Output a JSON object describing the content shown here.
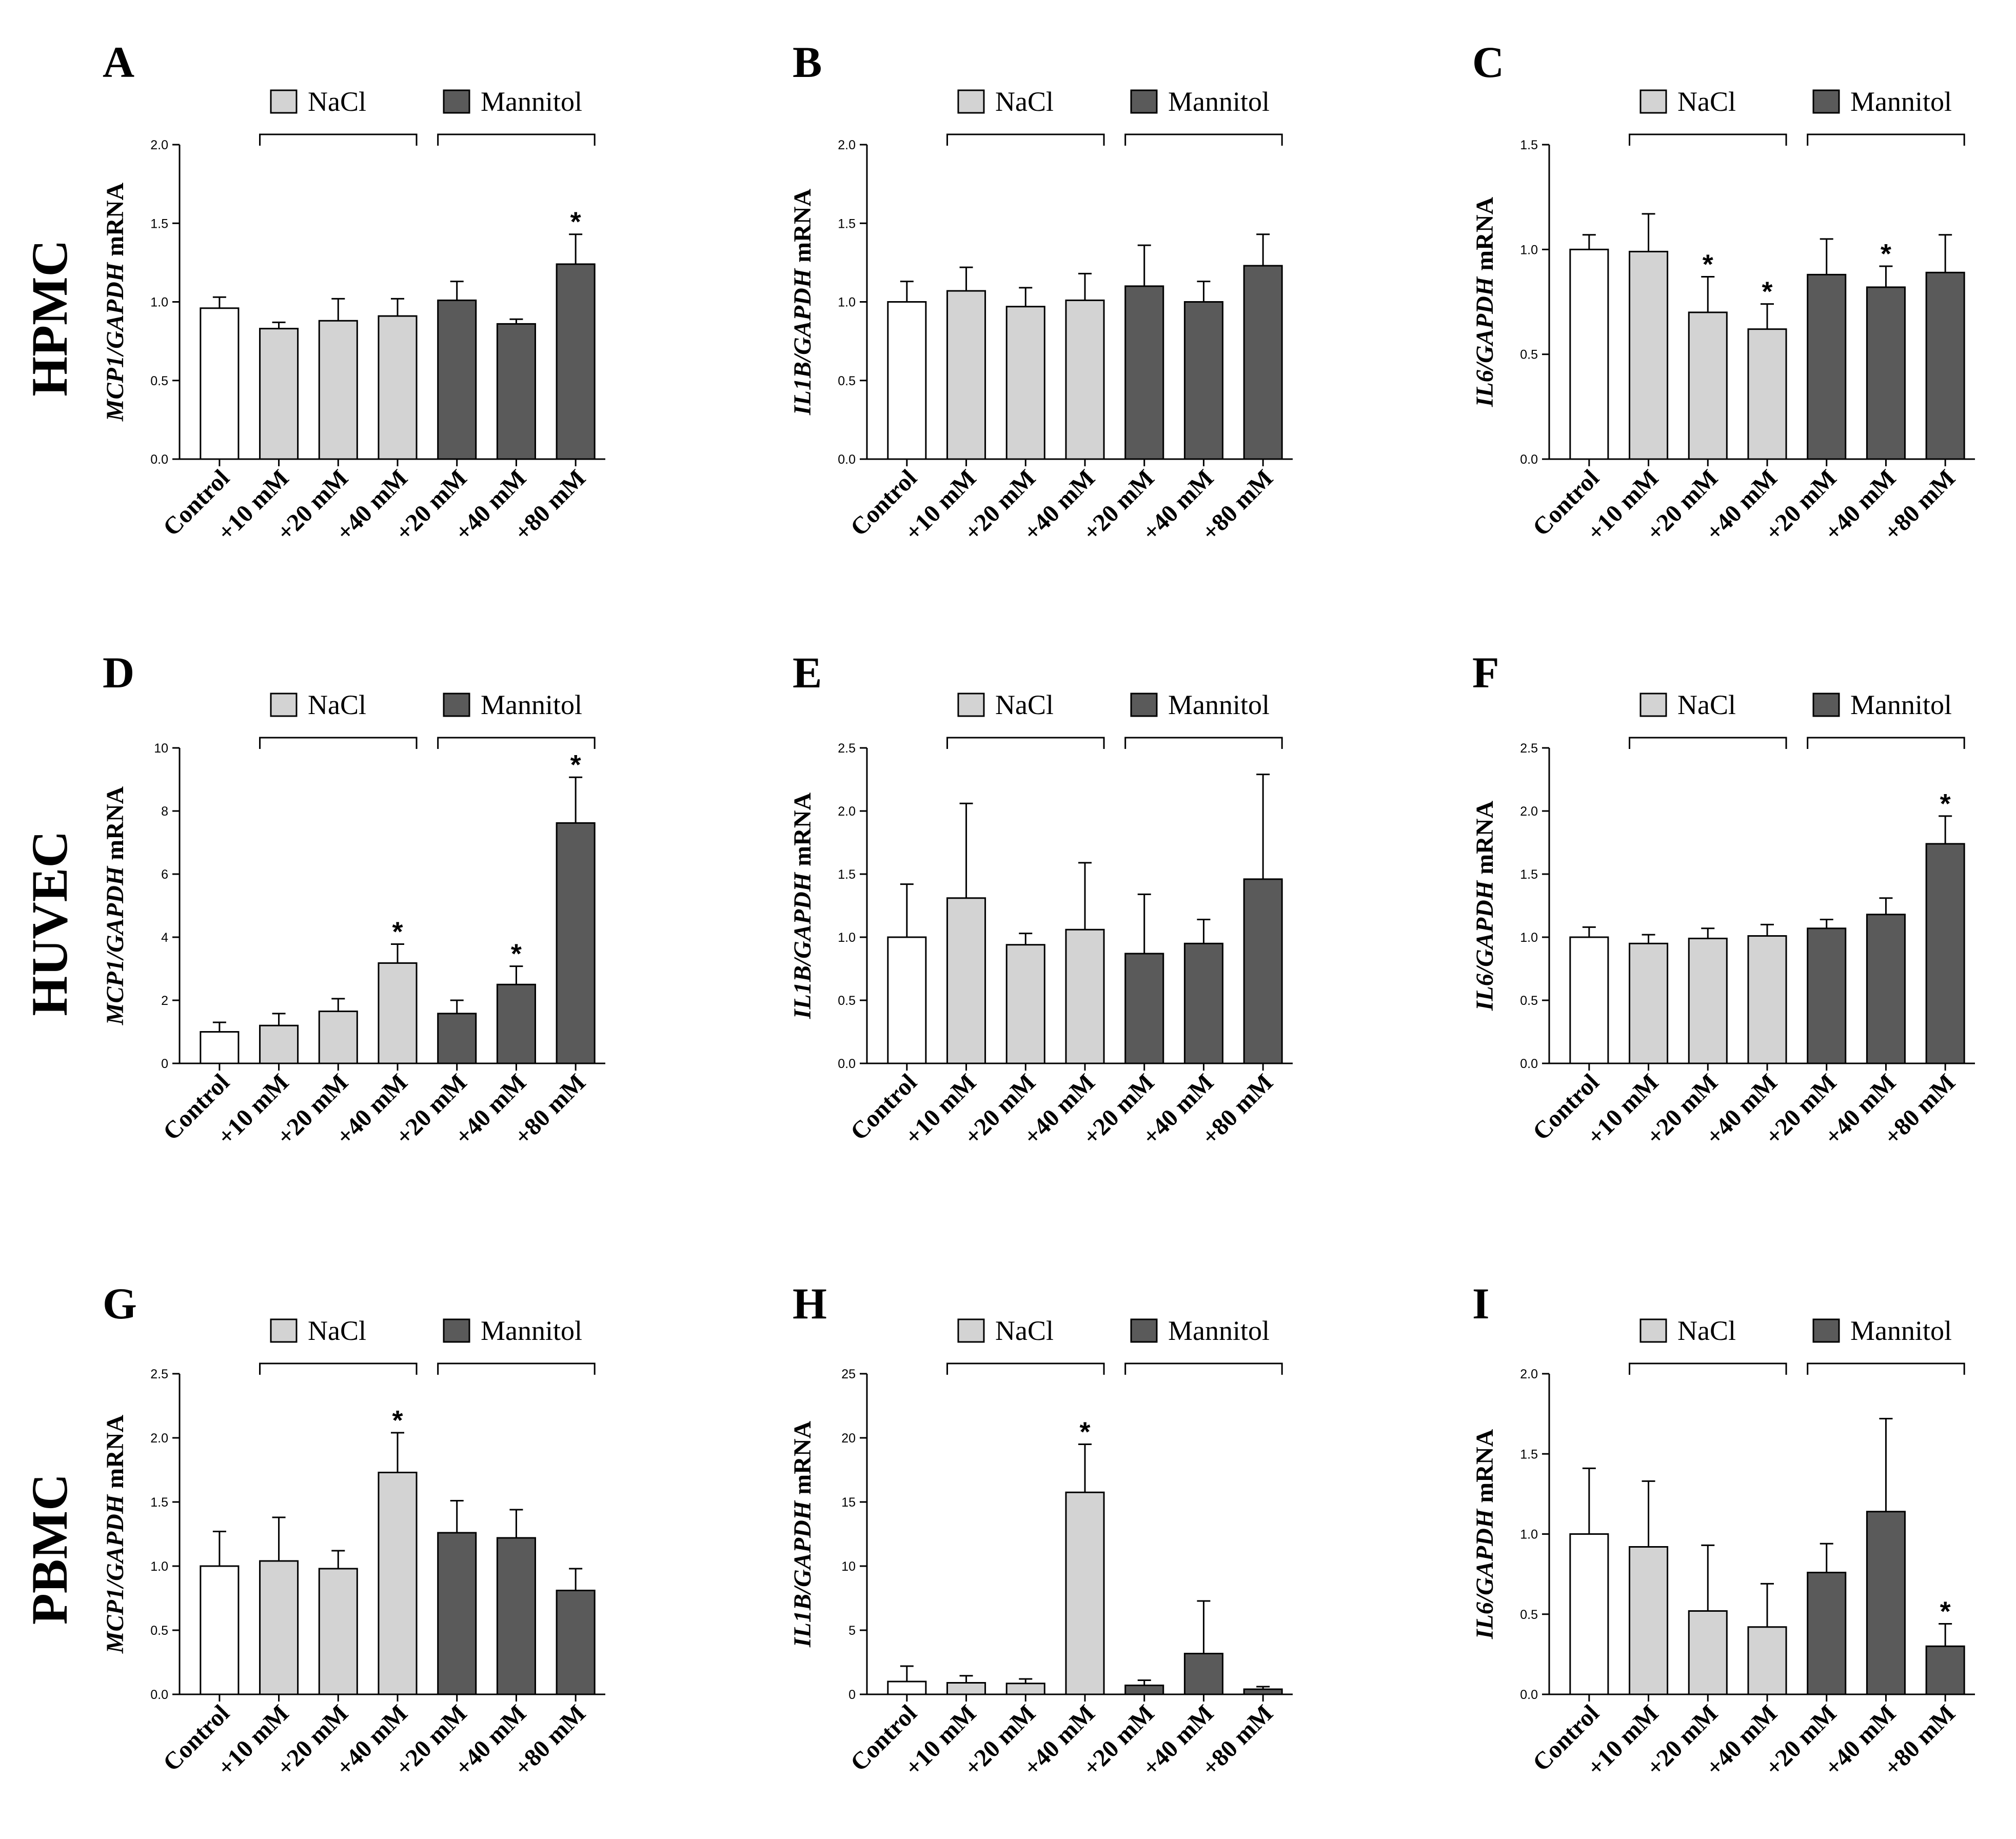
{
  "colors": {
    "control": "#ffffff",
    "nacl": "#d3d3d3",
    "mannitol": "#5a5a5a"
  },
  "figure": {
    "row_labels": [
      "HPMC",
      "HUVEC",
      "PBMC"
    ],
    "legend": {
      "nacl": "NaCl",
      "mannitol": "Mannitol"
    },
    "categories": [
      "Control",
      "+10 mM",
      "+20 mM",
      "+40 mM",
      "+20 mM",
      "+40 mM",
      "+80 mM"
    ],
    "groups": [
      "control",
      "nacl",
      "nacl",
      "nacl",
      "mannitol",
      "mannitol",
      "mannitol"
    ]
  },
  "chart_data": [
    {
      "panel": "A",
      "type": "bar",
      "ylabel_gene": "MCP1/GAPDH",
      "ylabel_suffix": " mRNA",
      "ylim": [
        0,
        2.0
      ],
      "yticks": [
        "0.0",
        "0.5",
        "1.0",
        "1.5",
        "2.0"
      ],
      "values": [
        0.96,
        0.83,
        0.88,
        0.91,
        1.01,
        0.86,
        1.24
      ],
      "errors": [
        0.07,
        0.04,
        0.14,
        0.11,
        0.12,
        0.03,
        0.19
      ],
      "significant": [
        false,
        false,
        false,
        false,
        false,
        false,
        true
      ]
    },
    {
      "panel": "B",
      "type": "bar",
      "ylabel_gene": "IL1B/GAPDH",
      "ylabel_suffix": " mRNA",
      "ylim": [
        0,
        2.0
      ],
      "yticks": [
        "0.0",
        "0.5",
        "1.0",
        "1.5",
        "2.0"
      ],
      "values": [
        1.0,
        1.07,
        0.97,
        1.01,
        1.1,
        1.0,
        1.23
      ],
      "errors": [
        0.13,
        0.15,
        0.12,
        0.17,
        0.26,
        0.13,
        0.2
      ],
      "significant": [
        false,
        false,
        false,
        false,
        false,
        false,
        false
      ]
    },
    {
      "panel": "C",
      "type": "bar",
      "ylabel_gene": "IL6/GAPDH",
      "ylabel_suffix": " mRNA",
      "ylim": [
        0,
        1.5
      ],
      "yticks": [
        "0.0",
        "0.5",
        "1.0",
        "1.5"
      ],
      "values": [
        1.0,
        0.99,
        0.7,
        0.62,
        0.88,
        0.82,
        0.89
      ],
      "errors": [
        0.07,
        0.18,
        0.17,
        0.12,
        0.17,
        0.1,
        0.18
      ],
      "significant": [
        false,
        false,
        true,
        true,
        false,
        true,
        false
      ]
    },
    {
      "panel": "D",
      "type": "bar",
      "ylabel_gene": "MCP1/GAPDH",
      "ylabel_suffix": " mRNA",
      "ylim": [
        0,
        10
      ],
      "yticks": [
        "0",
        "2",
        "4",
        "6",
        "8",
        "10"
      ],
      "values": [
        1.0,
        1.2,
        1.65,
        3.18,
        1.58,
        2.5,
        7.62
      ],
      "errors": [
        0.3,
        0.38,
        0.4,
        0.6,
        0.42,
        0.58,
        1.45
      ],
      "significant": [
        false,
        false,
        false,
        true,
        false,
        true,
        true
      ]
    },
    {
      "panel": "E",
      "type": "bar",
      "ylabel_gene": "IL1B/GAPDH",
      "ylabel_suffix": " mRNA",
      "ylim": [
        0,
        2.5
      ],
      "yticks": [
        "0.0",
        "0.5",
        "1.0",
        "1.5",
        "2.0",
        "2.5"
      ],
      "values": [
        1.0,
        1.31,
        0.94,
        1.06,
        0.87,
        0.95,
        1.46
      ],
      "errors": [
        0.42,
        0.75,
        0.09,
        0.53,
        0.47,
        0.19,
        0.83
      ],
      "significant": [
        false,
        false,
        false,
        false,
        false,
        false,
        false
      ]
    },
    {
      "panel": "F",
      "type": "bar",
      "ylabel_gene": "IL6/GAPDH",
      "ylabel_suffix": " mRNA",
      "ylim": [
        0,
        2.5
      ],
      "yticks": [
        "0.0",
        "0.5",
        "1.0",
        "1.5",
        "2.0",
        "2.5"
      ],
      "values": [
        1.0,
        0.95,
        0.99,
        1.01,
        1.07,
        1.18,
        1.74
      ],
      "errors": [
        0.08,
        0.07,
        0.08,
        0.09,
        0.07,
        0.13,
        0.22
      ],
      "significant": [
        false,
        false,
        false,
        false,
        false,
        false,
        true
      ]
    },
    {
      "panel": "G",
      "type": "bar",
      "ylabel_gene": "MCP1/GAPDH",
      "ylabel_suffix": " mRNA",
      "ylim": [
        0,
        2.5
      ],
      "yticks": [
        "0.0",
        "0.5",
        "1.0",
        "1.5",
        "2.0",
        "2.5"
      ],
      "values": [
        1.0,
        1.04,
        0.98,
        1.73,
        1.26,
        1.22,
        0.81
      ],
      "errors": [
        0.27,
        0.34,
        0.14,
        0.31,
        0.25,
        0.22,
        0.17
      ],
      "significant": [
        false,
        false,
        false,
        true,
        false,
        false,
        false
      ]
    },
    {
      "panel": "H",
      "type": "bar",
      "ylabel_gene": "IL1B/GAPDH",
      "ylabel_suffix": " mRNA",
      "ylim": [
        0,
        25
      ],
      "yticks": [
        "0",
        "5",
        "10",
        "15",
        "20",
        "25"
      ],
      "values": [
        1.0,
        0.9,
        0.85,
        15.75,
        0.7,
        3.18,
        0.4
      ],
      "errors": [
        1.2,
        0.55,
        0.35,
        3.75,
        0.4,
        4.1,
        0.2
      ],
      "significant": [
        false,
        false,
        false,
        true,
        false,
        false,
        false
      ]
    },
    {
      "panel": "I",
      "type": "bar",
      "ylabel_gene": "IL6/GAPDH",
      "ylabel_suffix": " mRNA",
      "ylim": [
        0,
        2.0
      ],
      "yticks": [
        "0.0",
        "0.5",
        "1.0",
        "1.5",
        "2.0"
      ],
      "values": [
        1.0,
        0.92,
        0.52,
        0.42,
        0.76,
        1.14,
        0.3
      ],
      "errors": [
        0.41,
        0.41,
        0.41,
        0.27,
        0.18,
        0.58,
        0.14
      ],
      "significant": [
        false,
        false,
        false,
        false,
        false,
        false,
        true
      ]
    }
  ]
}
